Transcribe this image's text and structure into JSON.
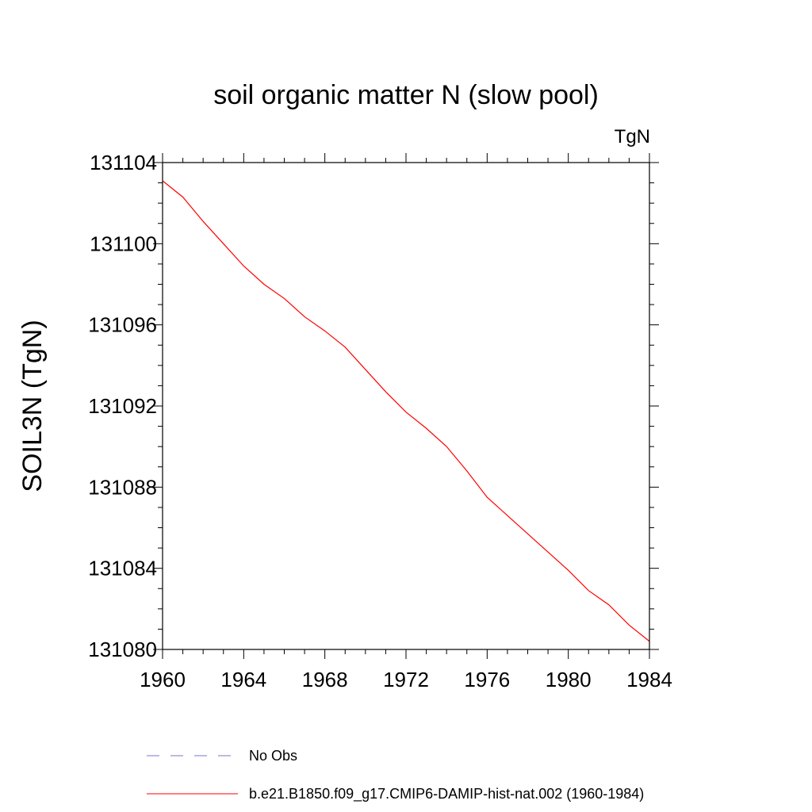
{
  "chart_data": {
    "type": "line",
    "title": "soil organic matter N (slow pool)",
    "units_label": "TgN",
    "xlabel": "",
    "ylabel": "SOIL3N  (TgN)",
    "xlim": [
      1960,
      1984
    ],
    "ylim": [
      131080,
      131104
    ],
    "x_ticks": [
      1960,
      1964,
      1968,
      1972,
      1976,
      1980,
      1984
    ],
    "y_ticks": [
      131080,
      131084,
      131088,
      131092,
      131096,
      131100,
      131104
    ],
    "x_tick_labels": [
      "1960",
      "1964",
      "1968",
      "1972",
      "1976",
      "1980",
      "1984"
    ],
    "y_tick_labels": [
      "131080",
      "131084",
      "131088",
      "131092",
      "131096",
      "131100",
      "131104"
    ],
    "grid": false,
    "legend_position": "bottom",
    "series": [
      {
        "name": "No Obs",
        "color": "#7777cc",
        "dash": "dashed",
        "x": [],
        "values": []
      },
      {
        "name": "b.e21.B1850.f09_g17.CMIP6-DAMIP-hist-nat.002 (1960-1984)",
        "color": "#ff0000",
        "dash": "solid",
        "x": [
          1960,
          1961,
          1962,
          1963,
          1964,
          1965,
          1966,
          1967,
          1968,
          1969,
          1970,
          1971,
          1972,
          1973,
          1974,
          1975,
          1976,
          1977,
          1978,
          1979,
          1980,
          1981,
          1982,
          1983,
          1984
        ],
        "values": [
          131103.1,
          131102.3,
          131101.1,
          131100.0,
          131098.9,
          131098.0,
          131097.3,
          131096.4,
          131095.7,
          131094.9,
          131093.8,
          131092.7,
          131091.7,
          131090.9,
          131090.0,
          131088.8,
          131087.5,
          131086.6,
          131085.7,
          131084.8,
          131083.9,
          131082.9,
          131082.2,
          131081.2,
          131080.4
        ]
      }
    ]
  }
}
